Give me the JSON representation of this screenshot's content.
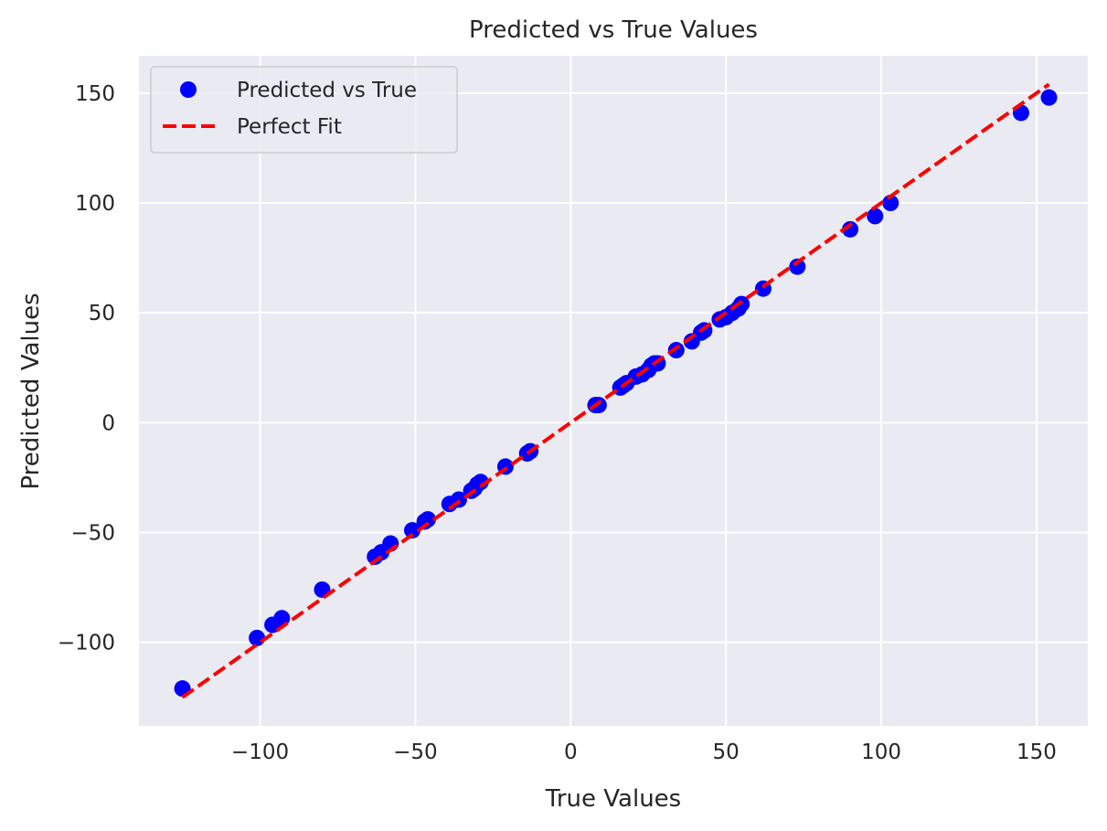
{
  "chart_data": {
    "type": "scatter",
    "title": "Predicted vs True Values",
    "xlabel": "True Values",
    "ylabel": "Predicted Values",
    "xlim": [
      -139,
      166.5
    ],
    "ylim": [
      -138,
      167
    ],
    "xticks": [
      -100,
      -50,
      0,
      50,
      100,
      150
    ],
    "yticks": [
      -100,
      -50,
      0,
      50,
      100,
      150
    ],
    "xtick_labels": [
      "−100",
      "−50",
      "0",
      "50",
      "100",
      "150"
    ],
    "ytick_labels": [
      "−100",
      "−50",
      "0",
      "50",
      "100",
      "150"
    ],
    "grid": true,
    "legend_position": "top-left",
    "background": "#eaeaf2",
    "series": [
      {
        "name": "Predicted vs True",
        "kind": "scatter",
        "color": "#0000ff",
        "x": [
          -125,
          -101,
          -96,
          -93,
          -80,
          -63,
          -61,
          -58,
          -51,
          -47,
          -46,
          -39,
          -36,
          -32,
          -31,
          -30,
          -29,
          -21,
          -14,
          -13,
          8,
          9,
          16,
          17,
          18,
          21,
          23,
          25,
          26,
          27,
          28,
          34,
          39,
          42,
          43,
          48,
          50,
          52,
          54,
          55,
          62,
          73,
          90,
          98,
          103,
          145,
          154
        ],
        "y": [
          -121,
          -98,
          -92,
          -89,
          -76,
          -61,
          -59,
          -55,
          -49,
          -45,
          -44,
          -37,
          -35,
          -31,
          -30,
          -28,
          -27,
          -20,
          -14,
          -13,
          8,
          8,
          16,
          17,
          18,
          21,
          22,
          24,
          26,
          27,
          27,
          33,
          37,
          41,
          42,
          47,
          48,
          50,
          52,
          54,
          61,
          71,
          88,
          94,
          100,
          141,
          148
        ]
      },
      {
        "name": "Perfect Fit",
        "kind": "line",
        "color": "#ff0000",
        "dashed": true,
        "x": [
          -125,
          154
        ],
        "y": [
          -125,
          154
        ]
      }
    ]
  }
}
